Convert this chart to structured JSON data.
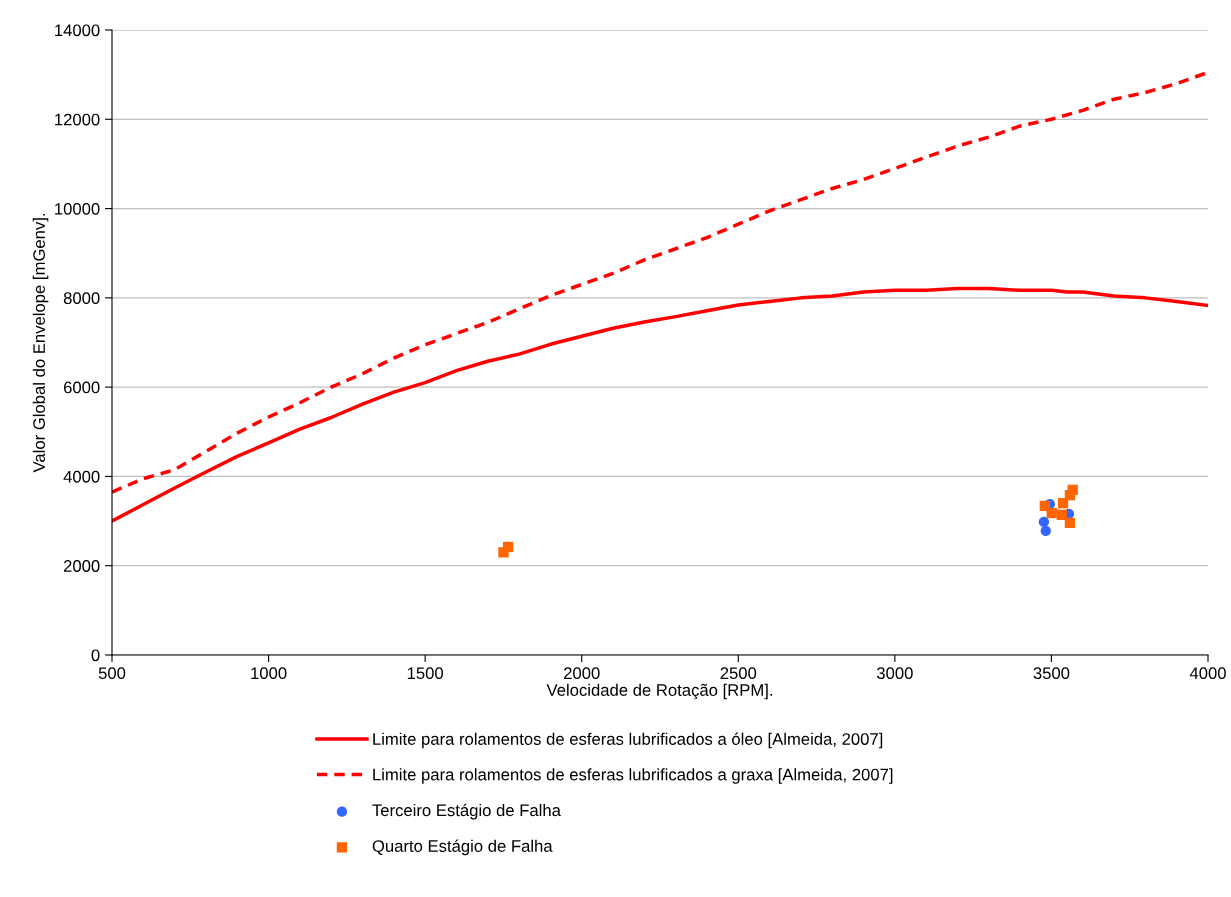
{
  "chart_data": {
    "type": "line",
    "xlabel": "Velocidade de Rotação [RPM].",
    "ylabel": "Valor Global do Envelope [mGenv].",
    "xlim": [
      500,
      4000
    ],
    "xticks": [
      500,
      1000,
      1500,
      2000,
      2500,
      3000,
      3500,
      4000
    ],
    "ylim": [
      0,
      14000
    ],
    "yticks": [
      0,
      2000,
      4000,
      6000,
      8000,
      10000,
      12000,
      14000
    ],
    "grid": "y",
    "legend": "bottom",
    "series": [
      {
        "name": "Limite para rolamentos de esferas lubrificados a óleo [Almeida, 2007]",
        "line_style": "solid",
        "color": "#ff0000",
        "x": [
          500,
          600,
          700,
          800,
          900,
          1000,
          1100,
          1200,
          1300,
          1400,
          1500,
          1600,
          1700,
          1800,
          1900,
          2000,
          2100,
          2200,
          2300,
          2400,
          2500,
          2600,
          2700,
          2800,
          2900,
          3000,
          3100,
          3200,
          3300,
          3400,
          3500,
          3550,
          3600,
          3700,
          3800,
          3900,
          4000
        ],
        "values": [
          3000,
          3370,
          3740,
          4100,
          4450,
          4750,
          5060,
          5320,
          5620,
          5890,
          6100,
          6370,
          6580,
          6740,
          6960,
          7140,
          7320,
          7460,
          7580,
          7710,
          7840,
          7920,
          8000,
          8040,
          8130,
          8170,
          8170,
          8210,
          8210,
          8170,
          8170,
          8130,
          8130,
          8040,
          8000,
          7920,
          7830
        ]
      },
      {
        "name": "Limite para rolamentos de esferas lubrificados a graxa [Almeida, 2007]",
        "line_style": "dashed",
        "color": "#ff0000",
        "x": [
          500,
          600,
          700,
          800,
          900,
          1000,
          1100,
          1200,
          1300,
          1400,
          1500,
          1600,
          1700,
          1800,
          1900,
          2000,
          2100,
          2200,
          2300,
          2400,
          2500,
          2600,
          2700,
          2800,
          2900,
          3000,
          3100,
          3200,
          3300,
          3400,
          3500,
          3600,
          3700,
          3800,
          3900,
          4000
        ],
        "values": [
          3650,
          3950,
          4150,
          4560,
          4970,
          5330,
          5650,
          6000,
          6300,
          6650,
          6950,
          7200,
          7450,
          7750,
          8050,
          8300,
          8550,
          8850,
          9100,
          9350,
          9650,
          9950,
          10200,
          10450,
          10650,
          10900,
          11150,
          11400,
          11600,
          11850,
          12000,
          12200,
          12450,
          12600,
          12800,
          13050
        ]
      },
      {
        "name": "Terceiro Estágio de Falha",
        "type": "scatter",
        "marker": "circle",
        "color": "#3366ff",
        "x": [
          3495,
          3476,
          3482,
          3556
        ],
        "values": [
          3380,
          2980,
          2780,
          3160
        ]
      },
      {
        "name": "Quarto Estágio de Falha",
        "type": "scatter",
        "marker": "square",
        "color": "#ff6600",
        "x": [
          1750,
          1765,
          3568,
          3559,
          3537,
          3479,
          3501,
          3533,
          3559
        ],
        "values": [
          2300,
          2420,
          3700,
          3580,
          3400,
          3340,
          3180,
          3140,
          2960
        ]
      }
    ]
  }
}
